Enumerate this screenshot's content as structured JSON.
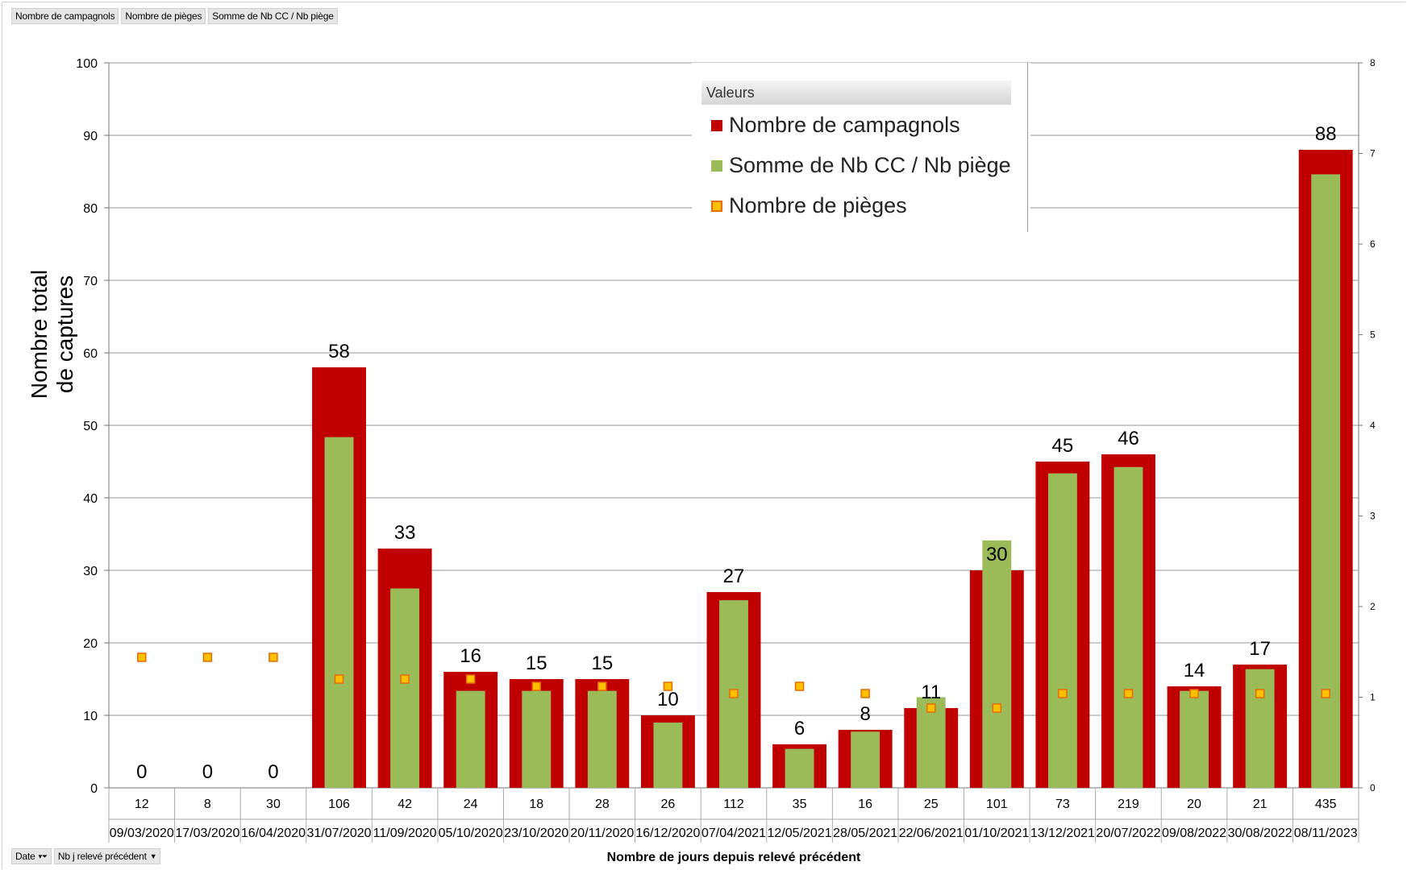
{
  "fields_top": [
    "Nombre de campagnols",
    "Nombre de pièges",
    "Somme  de Nb CC / Nb piège"
  ],
  "fields_bottom": {
    "date_label": "Date",
    "nbj_label": "Nb j relevé précédent"
  },
  "colors": {
    "campagnols": "#C00000",
    "somme": "#9BBB59",
    "pieges_fill": "#FFC000",
    "pieges_border": "#E46C0A"
  },
  "legend": {
    "title": "Valeurs",
    "items": [
      {
        "label": "Nombre de campagnols",
        "kind": "campagnols"
      },
      {
        "label": "Somme de Nb CC / Nb piège",
        "kind": "somme"
      },
      {
        "label": "Nombre de pièges",
        "kind": "pieges"
      }
    ]
  },
  "chart_data": {
    "type": "bar",
    "title": "",
    "xlabel": "Nombre de jours depuis relevé précédent",
    "ylabel": "Nombre total de captures",
    "ylim": [
      0,
      100
    ],
    "y2lim": [
      0,
      8
    ],
    "y_ticks": [
      0,
      10,
      20,
      30,
      40,
      50,
      60,
      70,
      80,
      90,
      100
    ],
    "y2_ticks": [
      0,
      1,
      2,
      3,
      4,
      5,
      6,
      7,
      8
    ],
    "grid": true,
    "legend_position": "top-right",
    "categories": [
      {
        "nbj": "12",
        "date": "09/03/2020"
      },
      {
        "nbj": "8",
        "date": "17/03/2020"
      },
      {
        "nbj": "30",
        "date": "16/04/2020"
      },
      {
        "nbj": "106",
        "date": "31/07/2020"
      },
      {
        "nbj": "42",
        "date": "11/09/2020"
      },
      {
        "nbj": "24",
        "date": "05/10/2020"
      },
      {
        "nbj": "18",
        "date": "23/10/2020"
      },
      {
        "nbj": "28",
        "date": "20/11/2020"
      },
      {
        "nbj": "26",
        "date": "16/12/2020"
      },
      {
        "nbj": "112",
        "date": "07/04/2021"
      },
      {
        "nbj": "35",
        "date": "12/05/2021"
      },
      {
        "nbj": "16",
        "date": "28/05/2021"
      },
      {
        "nbj": "25",
        "date": "22/06/2021"
      },
      {
        "nbj": "101",
        "date": "01/10/2021"
      },
      {
        "nbj": "73",
        "date": "13/12/2021"
      },
      {
        "nbj": "219",
        "date": "20/07/2022"
      },
      {
        "nbj": "20",
        "date": "09/08/2022"
      },
      {
        "nbj": "21",
        "date": "30/08/2022"
      },
      {
        "nbj": "435",
        "date": "08/11/2023"
      }
    ],
    "series": [
      {
        "name": "Nombre de campagnols",
        "axis": "left",
        "kind": "bar",
        "values": [
          0,
          0,
          0,
          58,
          33,
          16,
          15,
          15,
          10,
          27,
          6,
          8,
          11,
          30,
          45,
          46,
          14,
          17,
          88
        ],
        "data_labels": [
          "0",
          "0",
          "0",
          "58",
          "33",
          "16",
          "15",
          "15",
          "10",
          "27",
          "6",
          "8",
          "11",
          "30",
          "45",
          "46",
          "14",
          "17",
          "88"
        ]
      },
      {
        "name": "Somme de Nb CC / Nb piège",
        "axis": "right",
        "kind": "bar",
        "values": [
          0,
          0,
          0,
          3.87,
          2.2,
          1.07,
          1.07,
          1.07,
          0.72,
          2.07,
          0.43,
          0.62,
          1.0,
          2.73,
          3.47,
          3.54,
          1.07,
          1.31,
          6.77
        ]
      },
      {
        "name": "Nombre de pièges",
        "axis": "left",
        "kind": "marker",
        "values": [
          18,
          18,
          18,
          15,
          15,
          15,
          14,
          14,
          14,
          13,
          14,
          13,
          11,
          11,
          13,
          13,
          13,
          13,
          13
        ]
      }
    ]
  }
}
